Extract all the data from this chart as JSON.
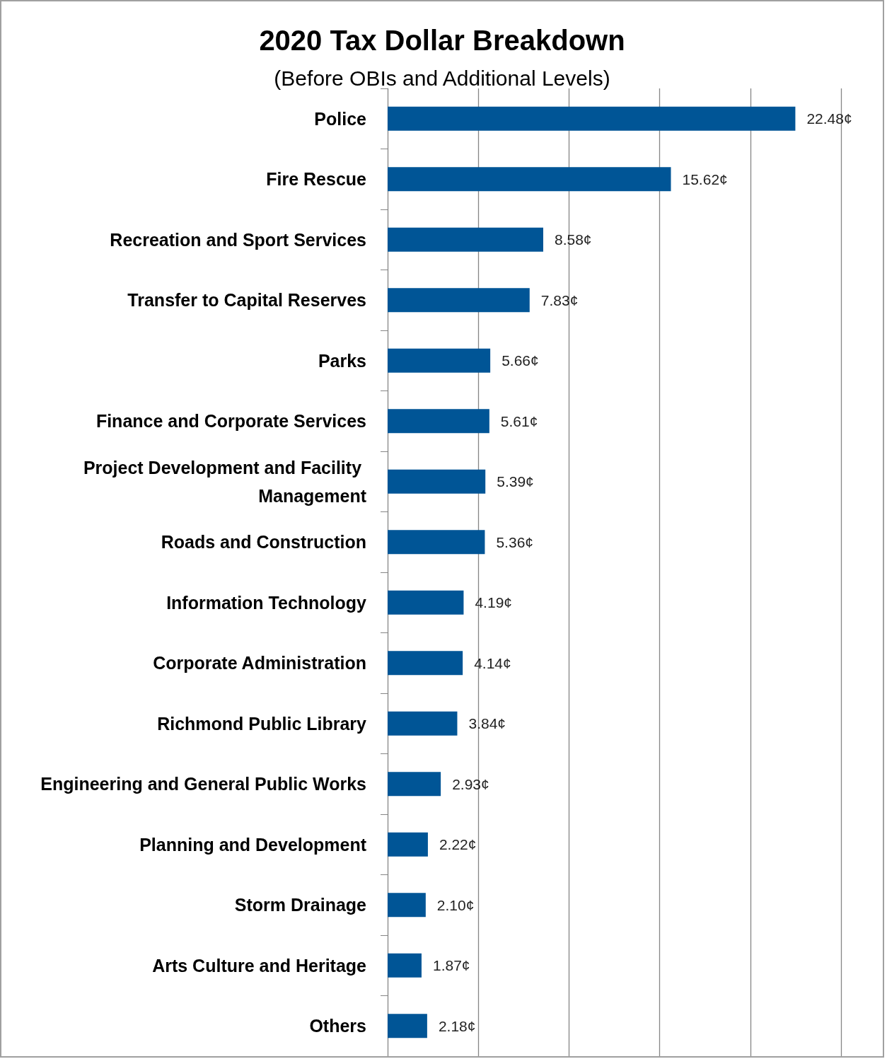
{
  "chart_data": {
    "type": "bar",
    "orientation": "horizontal",
    "title": "2020 Tax Dollar Breakdown",
    "subtitle": "(Before OBIs and Additional Levels)",
    "categories": [
      "Police",
      "Fire Rescue",
      "Recreation and Sport Services",
      "Transfer to Capital Reserves",
      "Parks",
      "Finance and Corporate Services",
      "Project Development and Facility Management",
      "Roads and Construction",
      "Information Technology",
      "Corporate Administration",
      "Richmond Public Library",
      "Engineering and General Public Works",
      "Planning and Development",
      "Storm Drainage",
      "Arts Culture and Heritage",
      "Others"
    ],
    "values": [
      22.48,
      15.62,
      8.58,
      7.83,
      5.66,
      5.61,
      5.39,
      5.36,
      4.19,
      4.14,
      3.84,
      2.93,
      2.22,
      2.1,
      1.87,
      2.18
    ],
    "value_labels": [
      "22.48¢",
      "15.62¢",
      "8.58¢",
      "7.83¢",
      "5.66¢",
      "5.61¢",
      "5.39¢",
      "5.36¢",
      "4.19¢",
      "4.14¢",
      "3.84¢",
      "2.93¢",
      "2.22¢",
      "2.10¢",
      "1.87¢",
      "2.18¢"
    ],
    "color": "#005596",
    "xlim": [
      0,
      27.3
    ],
    "xticks": [
      {
        "value": 0,
        "label": null
      },
      {
        "value": 5,
        "label": null
      },
      {
        "value": 10,
        "label": null
      },
      {
        "value": 15,
        "label": null
      },
      {
        "value": 20,
        "label": null
      },
      {
        "value": 25,
        "label": null
      }
    ],
    "grid": "x",
    "tick_labels": "y"
  }
}
